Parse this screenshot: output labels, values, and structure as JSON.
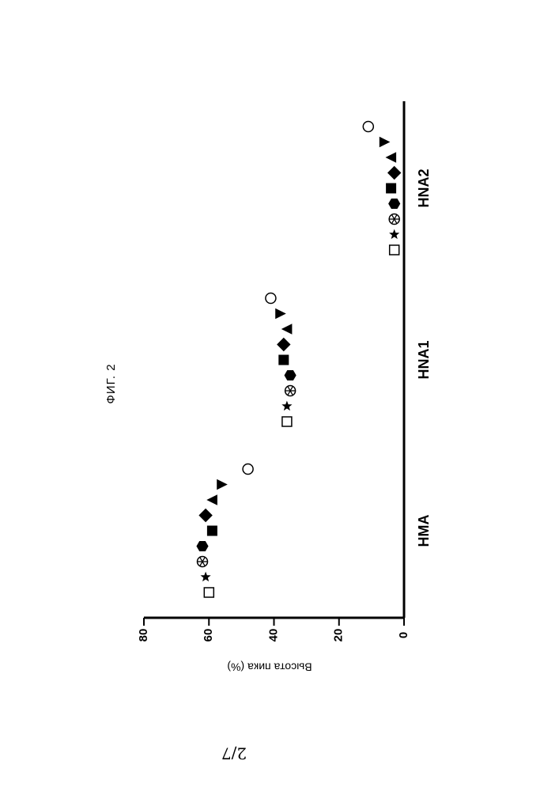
{
  "page": {
    "figure_label": "ФИГ. 2",
    "page_number": "2/7"
  },
  "chart_data": {
    "type": "scatter",
    "orientation": "rotated-90-ccw",
    "ylabel": "Высота пика (%)",
    "ylim": [
      0,
      80
    ],
    "yticks": [
      0,
      20,
      40,
      60,
      80
    ],
    "grid": false,
    "categories": [
      "HMA",
      "HNA1",
      "HNA2"
    ],
    "series": [
      {
        "marker": "open-square",
        "values": [
          60,
          36,
          3
        ]
      },
      {
        "marker": "filled-star",
        "values": [
          61,
          36,
          3
        ]
      },
      {
        "marker": "asterisk-circle",
        "values": [
          62,
          35,
          3
        ]
      },
      {
        "marker": "filled-hexagon",
        "values": [
          62,
          35,
          3
        ]
      },
      {
        "marker": "filled-square",
        "values": [
          59,
          37,
          4
        ]
      },
      {
        "marker": "filled-diamond",
        "values": [
          61,
          37,
          3
        ]
      },
      {
        "marker": "filled-triangle-up",
        "values": [
          59,
          36,
          4
        ]
      },
      {
        "marker": "filled-triangle-down",
        "values": [
          56,
          38,
          6
        ]
      },
      {
        "marker": "open-circle",
        "values": [
          48,
          41,
          11
        ]
      }
    ]
  }
}
